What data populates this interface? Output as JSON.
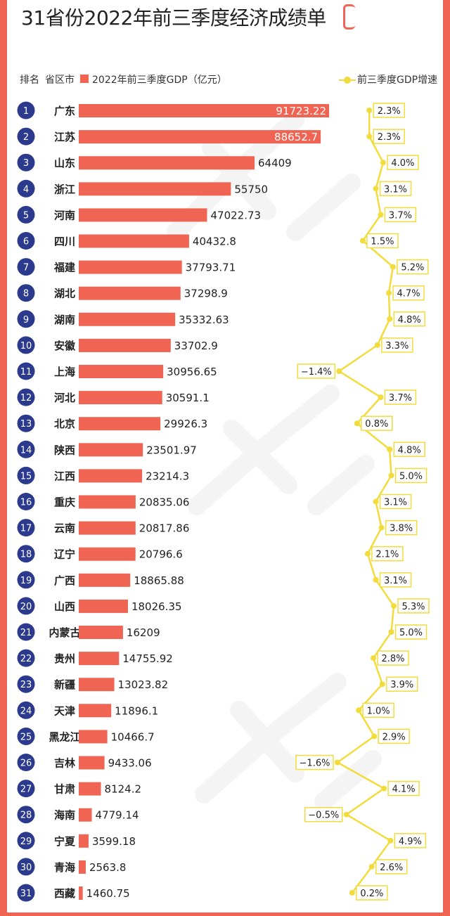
{
  "title": "31省份2022年前三季度经济成绩单",
  "header": {
    "rank_label": "排名",
    "province_label": "省区市",
    "gdp_legend": "2022年前三季度GDP（亿元）",
    "growth_legend": "前三季度GDP增速"
  },
  "colors": {
    "bar": "#ef6452",
    "badge": "#2b3a8c",
    "growth_line": "#f2dc3c",
    "frame": "#ef6452"
  },
  "chart_data": {
    "type": "bar",
    "orientation": "horizontal",
    "categories": [
      "广东",
      "江苏",
      "山东",
      "浙江",
      "河南",
      "四川",
      "福建",
      "湖北",
      "湖南",
      "安徽",
      "上海",
      "河北",
      "北京",
      "陕西",
      "江西",
      "重庆",
      "云南",
      "辽宁",
      "广西",
      "山西",
      "内蒙古",
      "贵州",
      "新疆",
      "天津",
      "黑龙江",
      "吉林",
      "甘肃",
      "海南",
      "宁夏",
      "青海",
      "西藏"
    ],
    "ranks": [
      "1",
      "2",
      "3",
      "4",
      "5",
      "6",
      "7",
      "8",
      "9",
      "10",
      "11",
      "12",
      "13",
      "14",
      "15",
      "16",
      "17",
      "18",
      "19",
      "20",
      "21",
      "22",
      "23",
      "24",
      "25",
      "26",
      "27",
      "28",
      "29",
      "30",
      "31"
    ],
    "series": [
      {
        "name": "2022年前三季度GDP（亿元）",
        "values": [
          91723.22,
          88652.7,
          64409,
          55750,
          47022.73,
          40432.8,
          37793.71,
          37298.9,
          35332.63,
          33702.9,
          30956.65,
          30591.1,
          29926.3,
          23501.97,
          23214.3,
          20835.06,
          20817.86,
          20796.6,
          18865.88,
          18026.35,
          16209,
          14755.92,
          13023.82,
          11896.1,
          10466.7,
          9433.06,
          8124.2,
          4779.14,
          3599.18,
          2563.8,
          1460.75
        ],
        "labels": [
          "91723.22",
          "88652.7",
          "64409",
          "55750",
          "47022.73",
          "40432.8",
          "37793.71",
          "37298.9",
          "35332.63",
          "33702.9",
          "30956.65",
          "30591.1",
          "29926.3",
          "23501.97",
          "23214.3",
          "20835.06",
          "20817.86",
          "20796.6",
          "18865.88",
          "18026.35",
          "16209",
          "14755.92",
          "13023.82",
          "11896.1",
          "10466.7",
          "9433.06",
          "8124.2",
          "4779.14",
          "3599.18",
          "2563.8",
          "1460.75"
        ]
      },
      {
        "name": "前三季度GDP增速",
        "values": [
          2.3,
          2.3,
          4.0,
          3.1,
          3.7,
          1.5,
          5.2,
          4.7,
          4.8,
          3.3,
          -1.4,
          3.7,
          0.8,
          4.8,
          5.0,
          3.1,
          3.8,
          2.1,
          3.1,
          5.3,
          5.0,
          2.8,
          3.9,
          1.0,
          2.9,
          -1.6,
          4.1,
          -0.5,
          4.9,
          2.6,
          0.2
        ],
        "labels": [
          "2.3%",
          "2.3%",
          "4.0%",
          "3.1%",
          "3.7%",
          "1.5%",
          "5.2%",
          "4.7%",
          "4.8%",
          "3.3%",
          "−1.4%",
          "3.7%",
          "0.8%",
          "4.8%",
          "5.0%",
          "3.1%",
          "3.8%",
          "2.1%",
          "3.1%",
          "5.3%",
          "5.0%",
          "2.8%",
          "3.9%",
          "1.0%",
          "2.9%",
          "−1.6%",
          "4.1%",
          "−0.5%",
          "4.9%",
          "2.6%",
          "0.2%"
        ]
      }
    ],
    "xlim_gdp": [
      0,
      91723.22
    ],
    "xlim_growth": [
      -1.6,
      5.3
    ],
    "grid": false
  }
}
